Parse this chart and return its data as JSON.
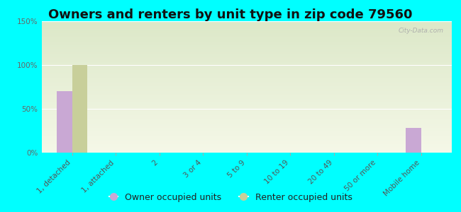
{
  "title": "Owners and renters by unit type in zip code 79560",
  "categories": [
    "1, detached",
    "1, attached",
    "2",
    "3 or 4",
    "5 to 9",
    "10 to 19",
    "20 to 49",
    "50 or more",
    "Mobile home"
  ],
  "owner_values": [
    70,
    0,
    0,
    0,
    0,
    0,
    0,
    0,
    28
  ],
  "renter_values": [
    100,
    0,
    0,
    0,
    0,
    0,
    0,
    0,
    0
  ],
  "owner_color": "#c9a8d4",
  "renter_color": "#c8cf9a",
  "background_color": "#00ffff",
  "plot_bg_color": "#f5f8e8",
  "plot_grad_top": "#dce8c8",
  "ylabel_ticks": [
    "0%",
    "50%",
    "100%",
    "150%"
  ],
  "ytick_vals": [
    0,
    50,
    100,
    150
  ],
  "ylim": [
    0,
    150
  ],
  "bar_width": 0.35,
  "title_fontsize": 13,
  "tick_fontsize": 7.5,
  "legend_fontsize": 9,
  "watermark": "City-Data.com"
}
